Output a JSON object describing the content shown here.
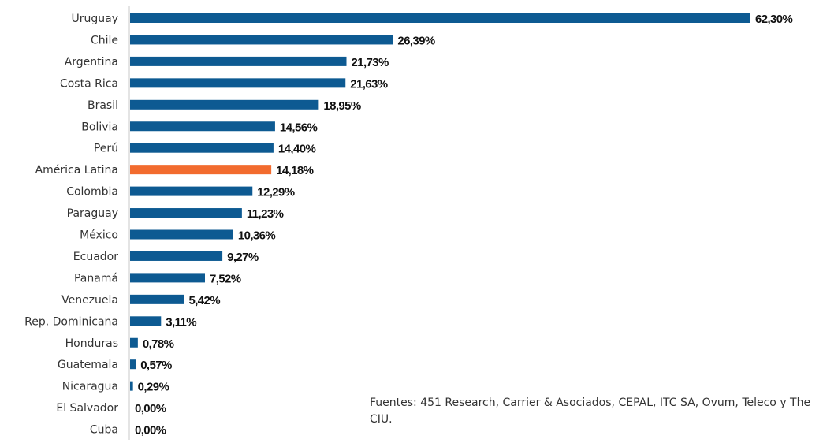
{
  "chart_data": {
    "type": "bar",
    "orientation": "horizontal",
    "title": "",
    "xlabel": "",
    "ylabel": "",
    "xlim": [
      0,
      62.3
    ],
    "grid": false,
    "legend": "none",
    "categories": [
      "Uruguay",
      "Chile",
      "Argentina",
      "Costa Rica",
      "Brasil",
      "Bolivia",
      "Perú",
      "América Latina",
      "Colombia",
      "Paraguay",
      "México",
      "Ecuador",
      "Panamá",
      "Venezuela",
      "Rep. Dominicana",
      "Honduras",
      "Guatemala",
      "Nicaragua",
      "El Salvador",
      "Cuba"
    ],
    "values": [
      62.3,
      26.39,
      21.73,
      21.63,
      18.95,
      14.56,
      14.4,
      14.18,
      12.29,
      11.23,
      10.36,
      9.27,
      7.52,
      5.42,
      3.11,
      0.78,
      0.57,
      0.29,
      0.0,
      0.0
    ],
    "value_labels": [
      "62,30%",
      "26,39%",
      "21,73%",
      "21,63%",
      "18,95%",
      "14,56%",
      "14,40%",
      "14,18%",
      "12,29%",
      "11,23%",
      "10,36%",
      "9,27%",
      "7,52%",
      "5,42%",
      "3,11%",
      "0,78%",
      "0,57%",
      "0,29%",
      "0,00%",
      "0,00%"
    ],
    "colors": {
      "default": "#0d5a92",
      "highlight": "#f26b2e",
      "highlight_category": "América Latina",
      "axis": "#c8c8c8"
    }
  },
  "source_note": "Fuentes: 451 Research,  Carrier & Asociados, CEPAL, ITC SA, Ovum, Teleco y The CIU."
}
